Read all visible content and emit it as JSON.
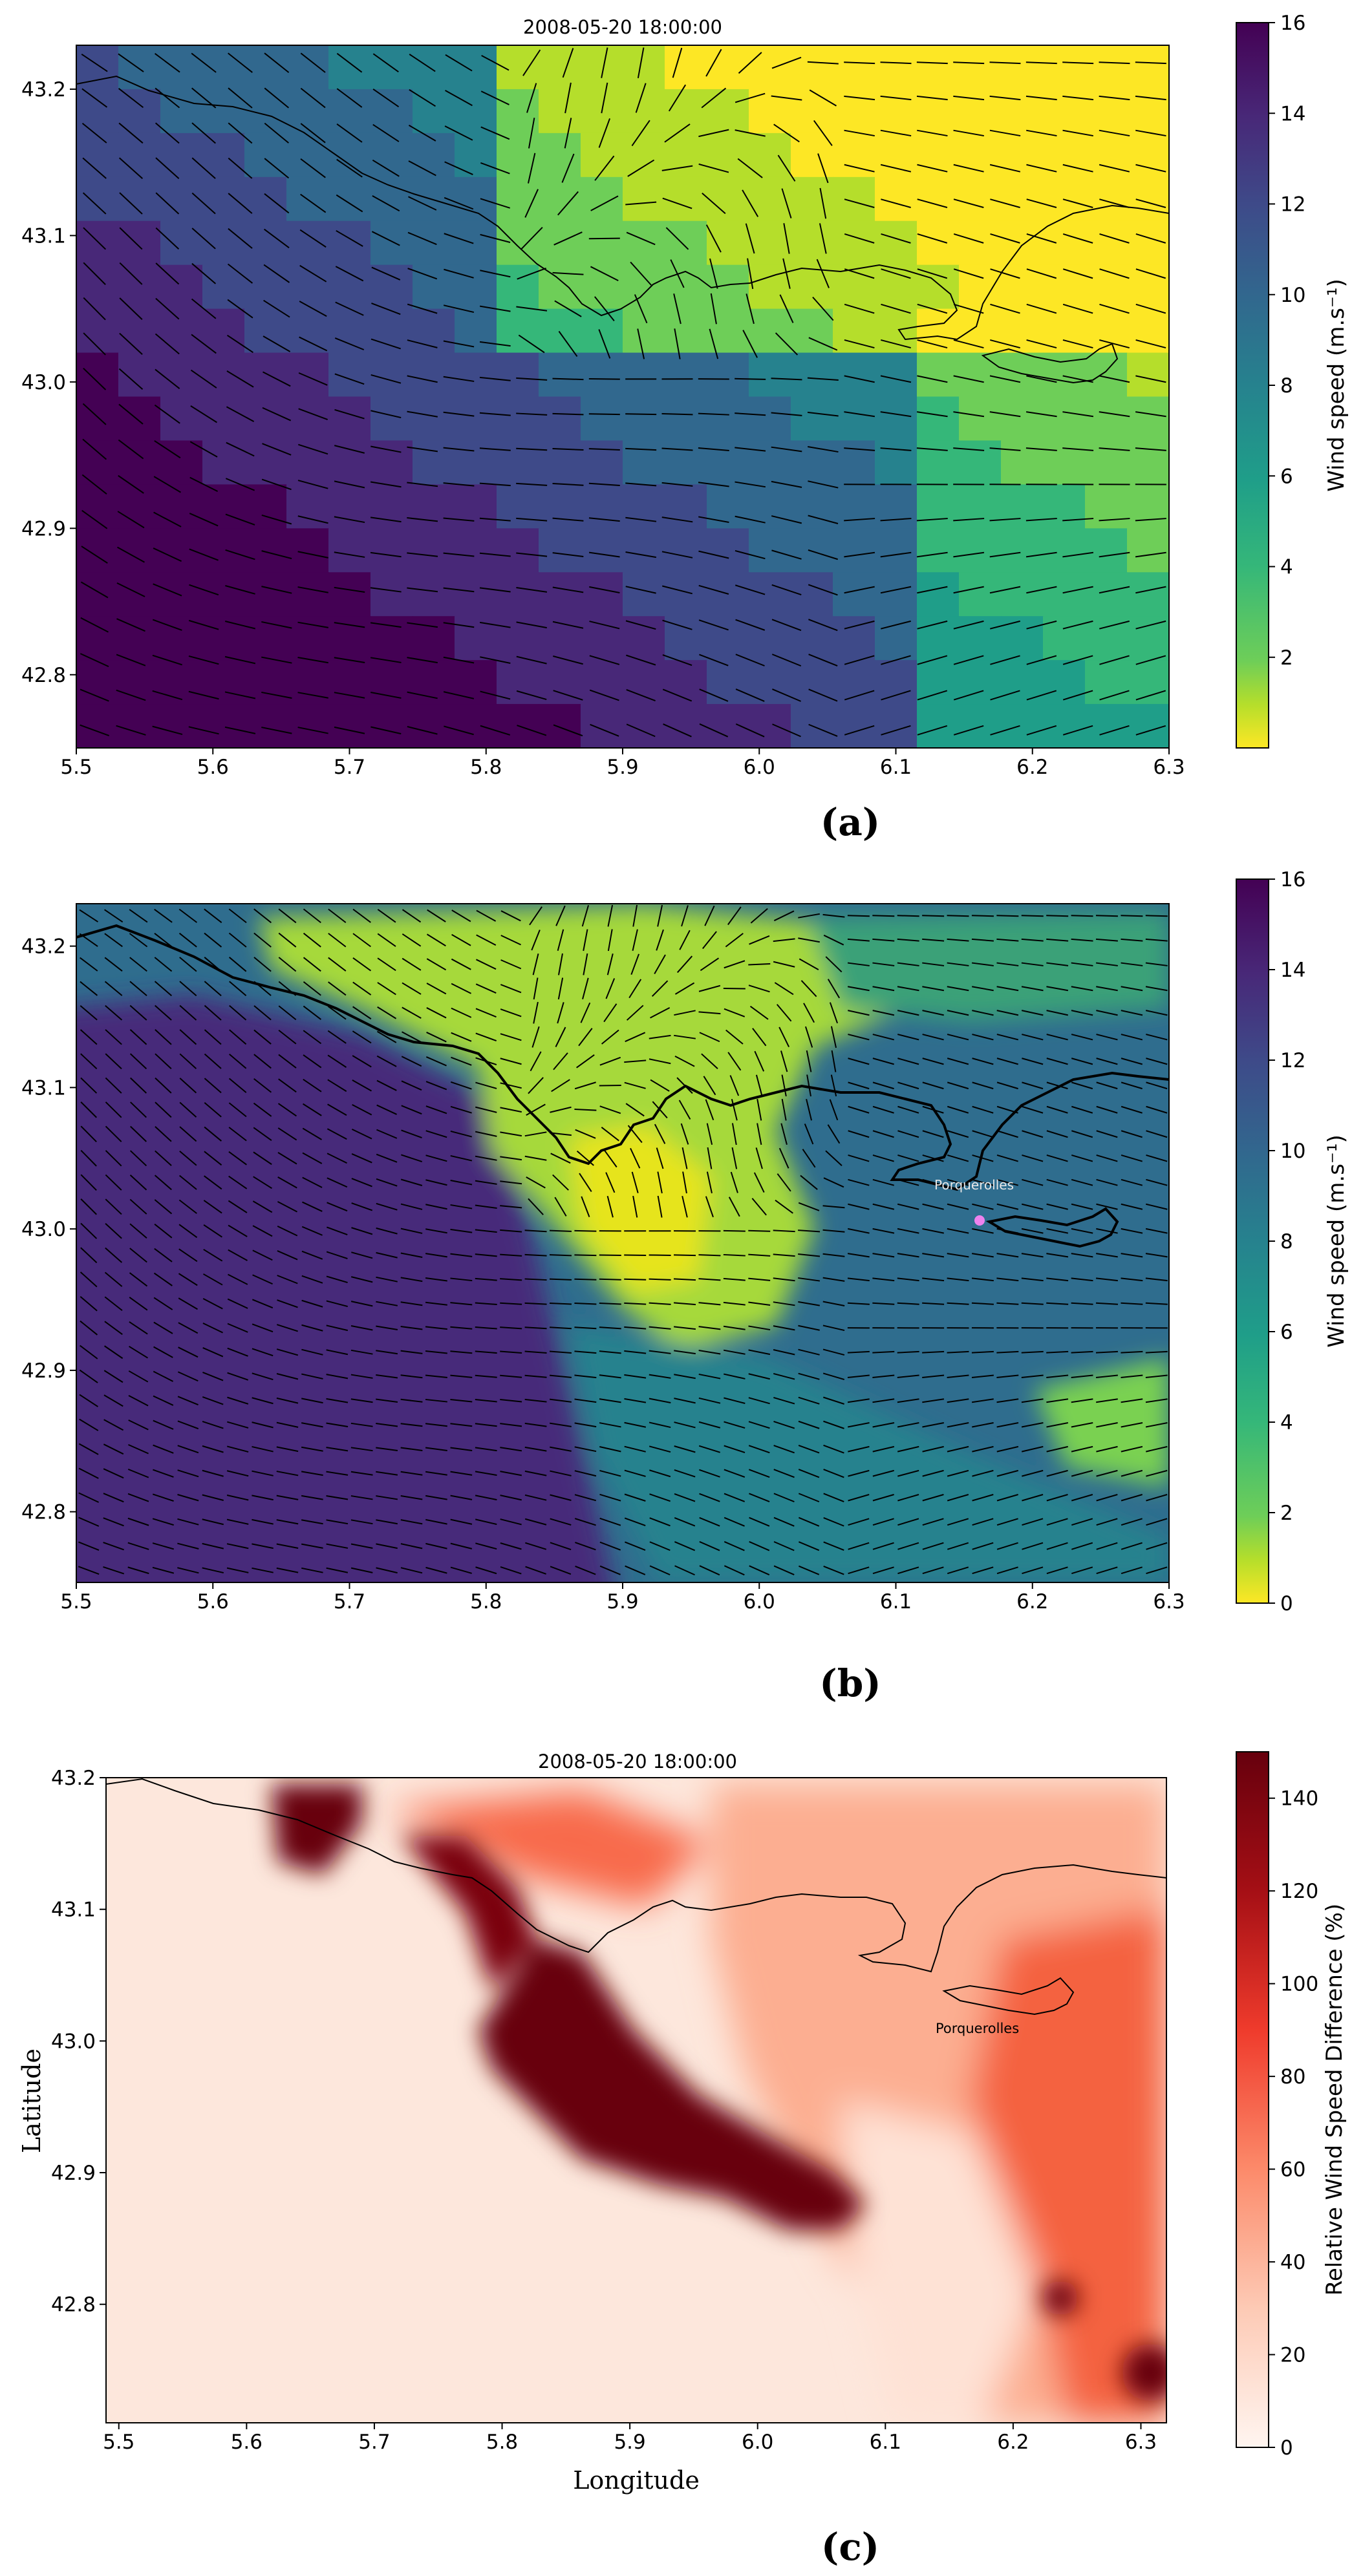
{
  "figure": {
    "panels": [
      {
        "id": "a",
        "caption": "(a)",
        "title": "2008-05-20 18:00:00"
      },
      {
        "id": "b",
        "caption": "(b)",
        "title": ""
      },
      {
        "id": "c",
        "caption": "(c)",
        "title": "2008-05-20 18:00:00"
      }
    ]
  },
  "chart_data": [
    {
      "type": "heatmap",
      "panel": "a",
      "title": "2008-05-20 18:00:00",
      "xlabel": "",
      "ylabel": "",
      "xlim": [
        5.5,
        6.3
      ],
      "ylim": [
        42.75,
        43.23
      ],
      "xticks": [
        5.5,
        5.6,
        5.7,
        5.8,
        5.9,
        6.0,
        6.1,
        6.2,
        6.3
      ],
      "xtick_labels": [
        "5.5",
        "5.6",
        "5.7",
        "5.8",
        "5.9",
        "6.0",
        "6.1",
        "6.2",
        "6.3"
      ],
      "yticks": [
        42.8,
        42.9,
        43.0,
        43.1,
        43.2
      ],
      "ytick_labels": [
        "42.8",
        "42.9",
        "43.0",
        "43.1",
        "43.2"
      ],
      "colormap": "viridis_r",
      "colorbar": {
        "label": "Wind speed (m.s⁻¹)",
        "range": [
          0,
          16
        ],
        "ticks": [
          2,
          4,
          6,
          8,
          10,
          12,
          14,
          16
        ],
        "tick_labels": [
          "2",
          "4",
          "6",
          "8",
          "10",
          "12",
          "14",
          "16"
        ]
      },
      "grid": "coarse",
      "overlay": "wind vectors (quiver) + coastline",
      "annotations": []
    },
    {
      "type": "heatmap",
      "panel": "b",
      "title": "",
      "xlabel": "",
      "ylabel": "",
      "xlim": [
        5.5,
        6.3
      ],
      "ylim": [
        42.75,
        43.23
      ],
      "xticks": [
        5.5,
        5.6,
        5.7,
        5.8,
        5.9,
        6.0,
        6.1,
        6.2,
        6.3
      ],
      "xtick_labels": [
        "5.5",
        "5.6",
        "5.7",
        "5.8",
        "5.9",
        "6.0",
        "6.1",
        "6.2",
        "6.3"
      ],
      "yticks": [
        42.8,
        42.9,
        43.0,
        43.1,
        43.2
      ],
      "ytick_labels": [
        "42.8",
        "42.9",
        "43.0",
        "43.1",
        "43.2"
      ],
      "colormap": "viridis_r",
      "colorbar": {
        "label": "Wind speed (m.s⁻¹)",
        "range": [
          0,
          16
        ],
        "ticks": [
          0,
          2,
          4,
          6,
          8,
          10,
          12,
          14,
          16
        ],
        "tick_labels": [
          "0",
          "2",
          "4",
          "6",
          "8",
          "10",
          "12",
          "14",
          "16"
        ]
      },
      "grid": "fine",
      "overlay": "wind vectors (quiver) + coastline",
      "annotations": [
        {
          "text": "Porquerolles",
          "lon": 6.16,
          "lat": 43.005
        }
      ]
    },
    {
      "type": "heatmap",
      "panel": "c",
      "title": "2008-05-20 18:00:00",
      "xlabel": "Longitude",
      "ylabel": "Latitude",
      "xlim": [
        5.49,
        6.32
      ],
      "ylim": [
        42.71,
        43.2
      ],
      "xticks": [
        5.5,
        5.6,
        5.7,
        5.8,
        5.9,
        6.0,
        6.1,
        6.2,
        6.3
      ],
      "xtick_labels": [
        "5.5",
        "5.6",
        "5.7",
        "5.8",
        "5.9",
        "6.0",
        "6.1",
        "6.2",
        "6.3"
      ],
      "yticks": [
        42.8,
        42.9,
        43.0,
        43.1,
        43.2
      ],
      "ytick_labels": [
        "42.8",
        "42.9",
        "43.0",
        "43.1",
        "43.2"
      ],
      "colormap": "Reds",
      "colorbar": {
        "label": "Relative Wind Speed Difference (%)",
        "range": [
          0,
          150
        ],
        "ticks": [
          0,
          20,
          40,
          60,
          80,
          100,
          120,
          140
        ],
        "tick_labels": [
          "0",
          "20",
          "40",
          "60",
          "80",
          "100",
          "120",
          "140"
        ]
      },
      "overlay": "coastline",
      "annotations": [
        {
          "text": "Porquerolles",
          "lon": 6.17,
          "lat": 43.0
        }
      ]
    }
  ]
}
